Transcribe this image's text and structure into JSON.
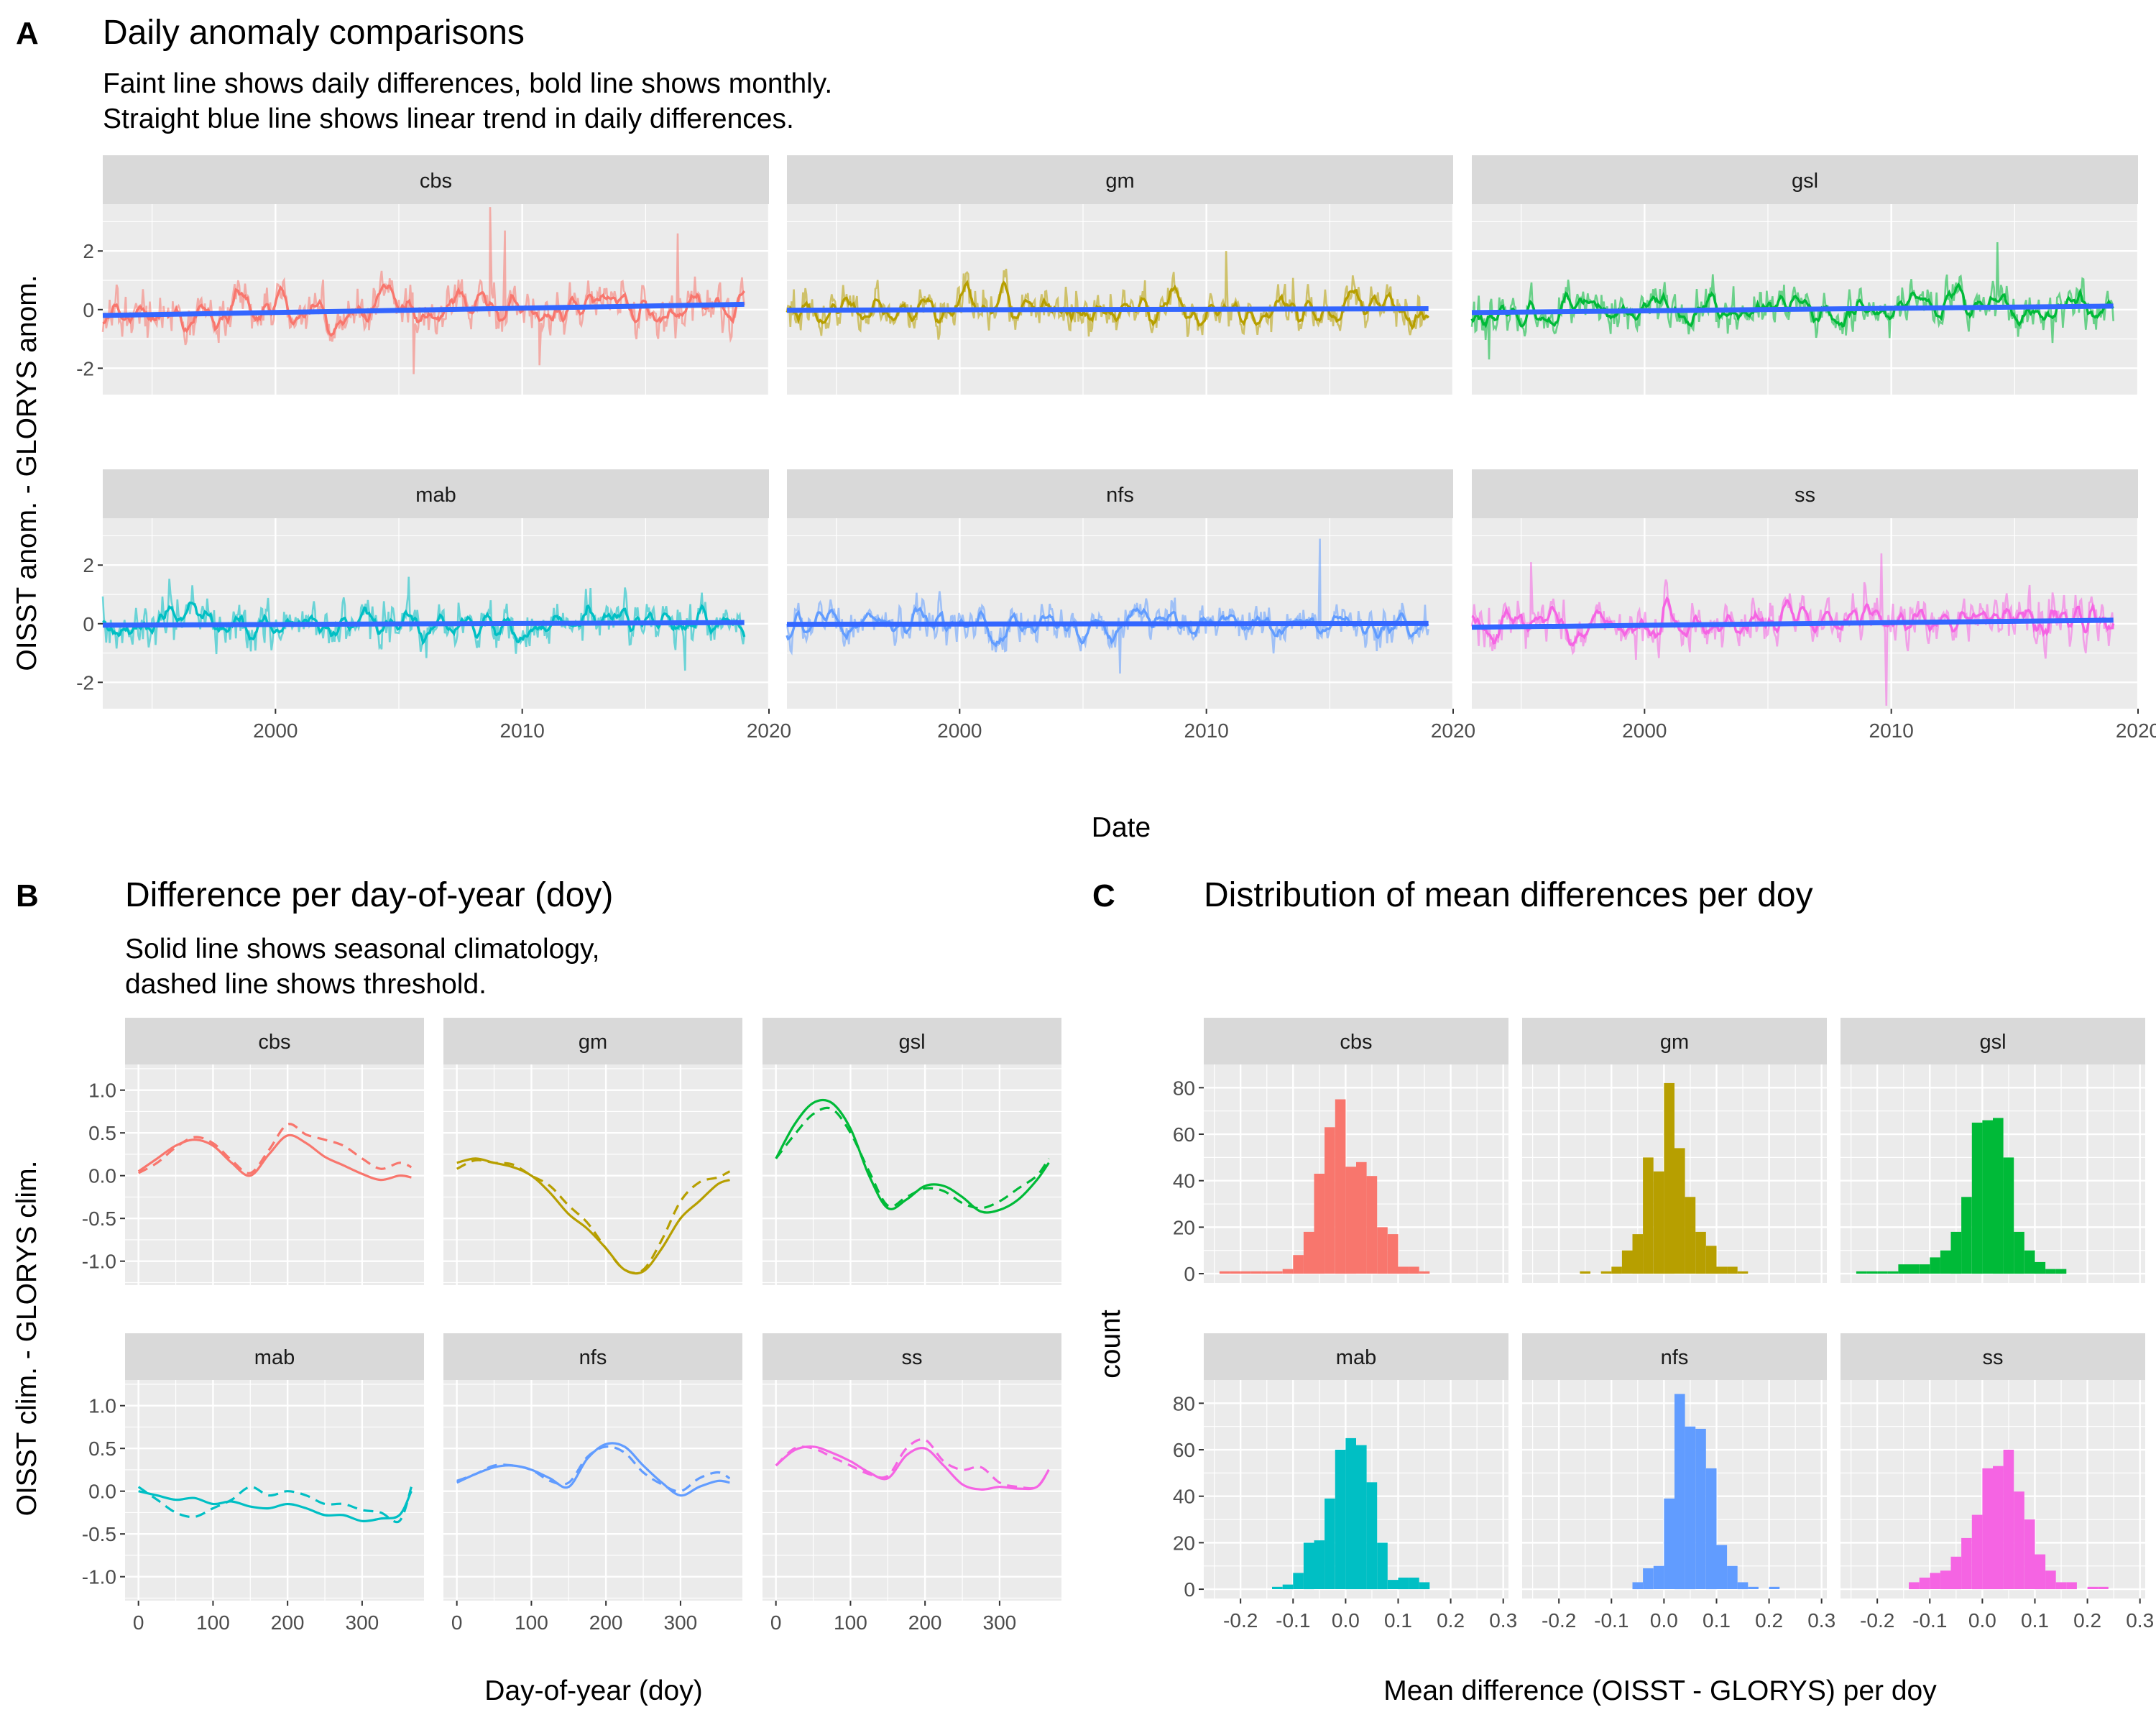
{
  "colors": {
    "cbs": "#F8766D",
    "gm": "#B79F00",
    "gsl": "#00BA38",
    "mab": "#00BFC4",
    "nfs": "#619CFF",
    "ss": "#F564E3",
    "trend": "#3366FF",
    "panel_bg": "#EBEBEB",
    "strip_bg": "#D9D9D9"
  },
  "panelA": {
    "tag": "A",
    "title": "Daily anomaly comparisons",
    "subtitle1": "Faint line shows daily differences, bold line shows monthly.",
    "subtitle2": "Straight blue line shows linear trend in daily differences.",
    "xlabel": "Date",
    "ylabel": "OISST anom. - GLORYS anom."
  },
  "panelB": {
    "tag": "B",
    "title": "Difference per day-of-year (doy)",
    "subtitle1": "Solid line shows seasonal climatology,",
    "subtitle2": "dashed line shows threshold.",
    "xlabel": "Day-of-year (doy)",
    "ylabel": "OISST clim. - GLORYS clim."
  },
  "panelC": {
    "tag": "C",
    "title": "Distribution of mean differences per doy",
    "xlabel": "Mean difference (OISST - GLORYS) per doy",
    "ylabel": "count"
  },
  "chart_data": [
    {
      "type": "line",
      "panel": "A",
      "facets": [
        "cbs",
        "gm",
        "gsl",
        "mab",
        "nfs",
        "ss"
      ],
      "xlim": [
        1993,
        2020
      ],
      "ylim": [
        -2.9,
        3.6
      ],
      "xticks": [
        2000,
        2010,
        2020
      ],
      "xtick_labels": [
        "2000",
        "2010",
        "2020"
      ],
      "yticks": [
        -2,
        0,
        2
      ],
      "ytick_labels": [
        "-2",
        "0",
        "2"
      ],
      "x_start": 1993,
      "x_end": 2019,
      "trend": {
        "cbs": [
          -0.2,
          0.18
        ],
        "gm": [
          -0.02,
          0.03
        ],
        "gsl": [
          -0.1,
          0.12
        ],
        "mab": [
          -0.05,
          0.04
        ],
        "nfs": [
          -0.02,
          0.01
        ],
        "ss": [
          -0.12,
          0.12
        ]
      },
      "noise_sd": {
        "cbs": 0.5,
        "gm": 0.45,
        "gsl": 0.45,
        "mab": 0.45,
        "nfs": 0.4,
        "ss": 0.5
      },
      "spikes": {
        "cbs": [
          [
            2005.6,
            -2.2
          ],
          [
            2008.7,
            3.5
          ],
          [
            2009.3,
            2.7
          ],
          [
            2010.7,
            -1.9
          ],
          [
            2016.3,
            2.6
          ]
        ],
        "gm": [
          [
            2010.8,
            2.0
          ]
        ],
        "gsl": [
          [
            2014.3,
            2.3
          ],
          [
            1993.7,
            -1.7
          ]
        ],
        "mab": [
          [
            2005.4,
            1.6
          ],
          [
            2016.6,
            -1.6
          ]
        ],
        "nfs": [
          [
            2014.6,
            2.9
          ],
          [
            2006.5,
            -1.7
          ]
        ],
        "ss": [
          [
            1995.4,
            2.1
          ],
          [
            2009.6,
            2.4
          ],
          [
            2009.8,
            -2.8
          ]
        ]
      }
    },
    {
      "type": "line",
      "panel": "B",
      "facets": [
        "cbs",
        "gm",
        "gsl",
        "mab",
        "nfs",
        "ss"
      ],
      "xlim": [
        -18,
        383
      ],
      "ylim": [
        -1.28,
        1.3
      ],
      "xticks": [
        0,
        100,
        200,
        300
      ],
      "xtick_labels": [
        "0",
        "100",
        "200",
        "300"
      ],
      "yticks": [
        -1.0,
        -0.5,
        0.0,
        0.5,
        1.0
      ],
      "ytick_labels": [
        "-1.0",
        "-0.5",
        "0.0",
        "0.5",
        "1.0"
      ],
      "x": [
        0,
        25,
        50,
        75,
        100,
        125,
        150,
        175,
        200,
        225,
        250,
        275,
        300,
        325,
        350,
        366
      ],
      "climatology": {
        "cbs": [
          0.05,
          0.2,
          0.35,
          0.42,
          0.35,
          0.15,
          0.0,
          0.25,
          0.47,
          0.38,
          0.22,
          0.12,
          0.02,
          -0.05,
          0.0,
          -0.02
        ],
        "gm": [
          0.15,
          0.2,
          0.15,
          0.1,
          0.0,
          -0.2,
          -0.45,
          -0.62,
          -0.85,
          -1.1,
          -1.12,
          -0.85,
          -0.5,
          -0.3,
          -0.1,
          -0.05
        ],
        "gsl": [
          0.2,
          0.6,
          0.85,
          0.85,
          0.55,
          0.0,
          -0.38,
          -0.28,
          -0.12,
          -0.12,
          -0.25,
          -0.42,
          -0.4,
          -0.28,
          -0.05,
          0.15
        ],
        "mab": [
          0.0,
          -0.05,
          -0.1,
          -0.08,
          -0.15,
          -0.12,
          -0.18,
          -0.2,
          -0.15,
          -0.2,
          -0.28,
          -0.28,
          -0.35,
          -0.32,
          -0.28,
          0.0
        ],
        "nfs": [
          0.1,
          0.2,
          0.28,
          0.3,
          0.25,
          0.15,
          0.05,
          0.38,
          0.55,
          0.52,
          0.3,
          0.1,
          -0.05,
          0.05,
          0.12,
          0.1
        ],
        "ss": [
          0.3,
          0.48,
          0.52,
          0.45,
          0.35,
          0.22,
          0.15,
          0.42,
          0.5,
          0.3,
          0.08,
          0.02,
          0.05,
          0.03,
          0.05,
          0.25
        ]
      },
      "threshold": {
        "cbs": [
          0.03,
          0.15,
          0.33,
          0.45,
          0.38,
          0.18,
          0.03,
          0.3,
          0.6,
          0.48,
          0.42,
          0.35,
          0.2,
          0.08,
          0.15,
          0.1
        ],
        "gm": [
          0.08,
          0.18,
          0.15,
          0.13,
          0.0,
          -0.12,
          -0.35,
          -0.55,
          -0.85,
          -1.1,
          -1.1,
          -0.75,
          -0.3,
          -0.08,
          -0.02,
          0.05
        ],
        "gsl": [
          0.2,
          0.48,
          0.72,
          0.78,
          0.5,
          0.05,
          -0.35,
          -0.25,
          -0.15,
          -0.18,
          -0.32,
          -0.38,
          -0.3,
          -0.15,
          0.0,
          0.2
        ],
        "mab": [
          0.05,
          -0.1,
          -0.25,
          -0.3,
          -0.2,
          -0.1,
          0.05,
          -0.05,
          0.0,
          -0.05,
          -0.15,
          -0.15,
          -0.22,
          -0.25,
          -0.35,
          0.05
        ],
        "nfs": [
          0.12,
          0.2,
          0.3,
          0.3,
          0.25,
          0.12,
          0.1,
          0.4,
          0.52,
          0.45,
          0.22,
          0.08,
          0.0,
          0.15,
          0.22,
          0.15
        ],
        "ss": [
          0.3,
          0.5,
          0.5,
          0.4,
          0.3,
          0.2,
          0.18,
          0.5,
          0.6,
          0.35,
          0.25,
          0.28,
          0.1,
          0.05,
          0.05,
          0.25
        ]
      }
    },
    {
      "type": "bar",
      "panel": "C",
      "facets": [
        "cbs",
        "gm",
        "gsl",
        "mab",
        "nfs",
        "ss"
      ],
      "xlim": [
        -0.27,
        0.31
      ],
      "ylim": [
        -4,
        90
      ],
      "xticks": [
        -0.2,
        -0.1,
        0.0,
        0.1,
        0.2,
        0.3
      ],
      "xtick_labels": [
        "-0.2",
        "-0.1",
        "0.0",
        "0.1",
        "0.2",
        "0.3"
      ],
      "yticks": [
        0,
        20,
        40,
        60,
        80
      ],
      "ytick_labels": [
        "0",
        "20",
        "40",
        "60",
        "80"
      ],
      "bin_width": 0.02,
      "bin_starts": [
        -0.26,
        -0.24,
        -0.22,
        -0.2,
        -0.18,
        -0.16,
        -0.14,
        -0.12,
        -0.1,
        -0.08,
        -0.06,
        -0.04,
        -0.02,
        0.0,
        0.02,
        0.04,
        0.06,
        0.08,
        0.1,
        0.12,
        0.14,
        0.16,
        0.18,
        0.2,
        0.22,
        0.24,
        0.26
      ],
      "counts": {
        "cbs": [
          0,
          1,
          1,
          1,
          1,
          1,
          1,
          2,
          8,
          18,
          43,
          63,
          75,
          46,
          48,
          42,
          20,
          17,
          3,
          3,
          1,
          0,
          0,
          0,
          0,
          0,
          0
        ],
        "gm": [
          0,
          0,
          0,
          0,
          0,
          1,
          0,
          1,
          3,
          10,
          17,
          50,
          44,
          82,
          54,
          33,
          18,
          12,
          3,
          3,
          1,
          0,
          0,
          0,
          0,
          0,
          0
        ],
        "gsl": [
          0,
          1,
          1,
          1,
          1,
          4,
          4,
          4,
          7,
          10,
          18,
          33,
          65,
          66,
          67,
          50,
          18,
          10,
          5,
          2,
          2,
          0,
          0,
          0,
          0,
          0,
          0
        ],
        "mab": [
          0,
          0,
          0,
          0,
          0,
          0,
          1,
          2,
          7,
          20,
          21,
          39,
          60,
          65,
          62,
          46,
          20,
          4,
          5,
          5,
          3,
          0,
          0,
          0,
          0,
          0,
          0
        ],
        "nfs": [
          0,
          0,
          0,
          0,
          0,
          0,
          0,
          0,
          0,
          0,
          3,
          9,
          10,
          39,
          84,
          70,
          69,
          52,
          19,
          10,
          3,
          1,
          0,
          1,
          0,
          0,
          0
        ],
        "ss": [
          0,
          0,
          0,
          0,
          0,
          0,
          3,
          5,
          7,
          8,
          14,
          22,
          32,
          52,
          53,
          60,
          42,
          30,
          15,
          8,
          3,
          3,
          0,
          1,
          1,
          0,
          0
        ]
      }
    }
  ]
}
